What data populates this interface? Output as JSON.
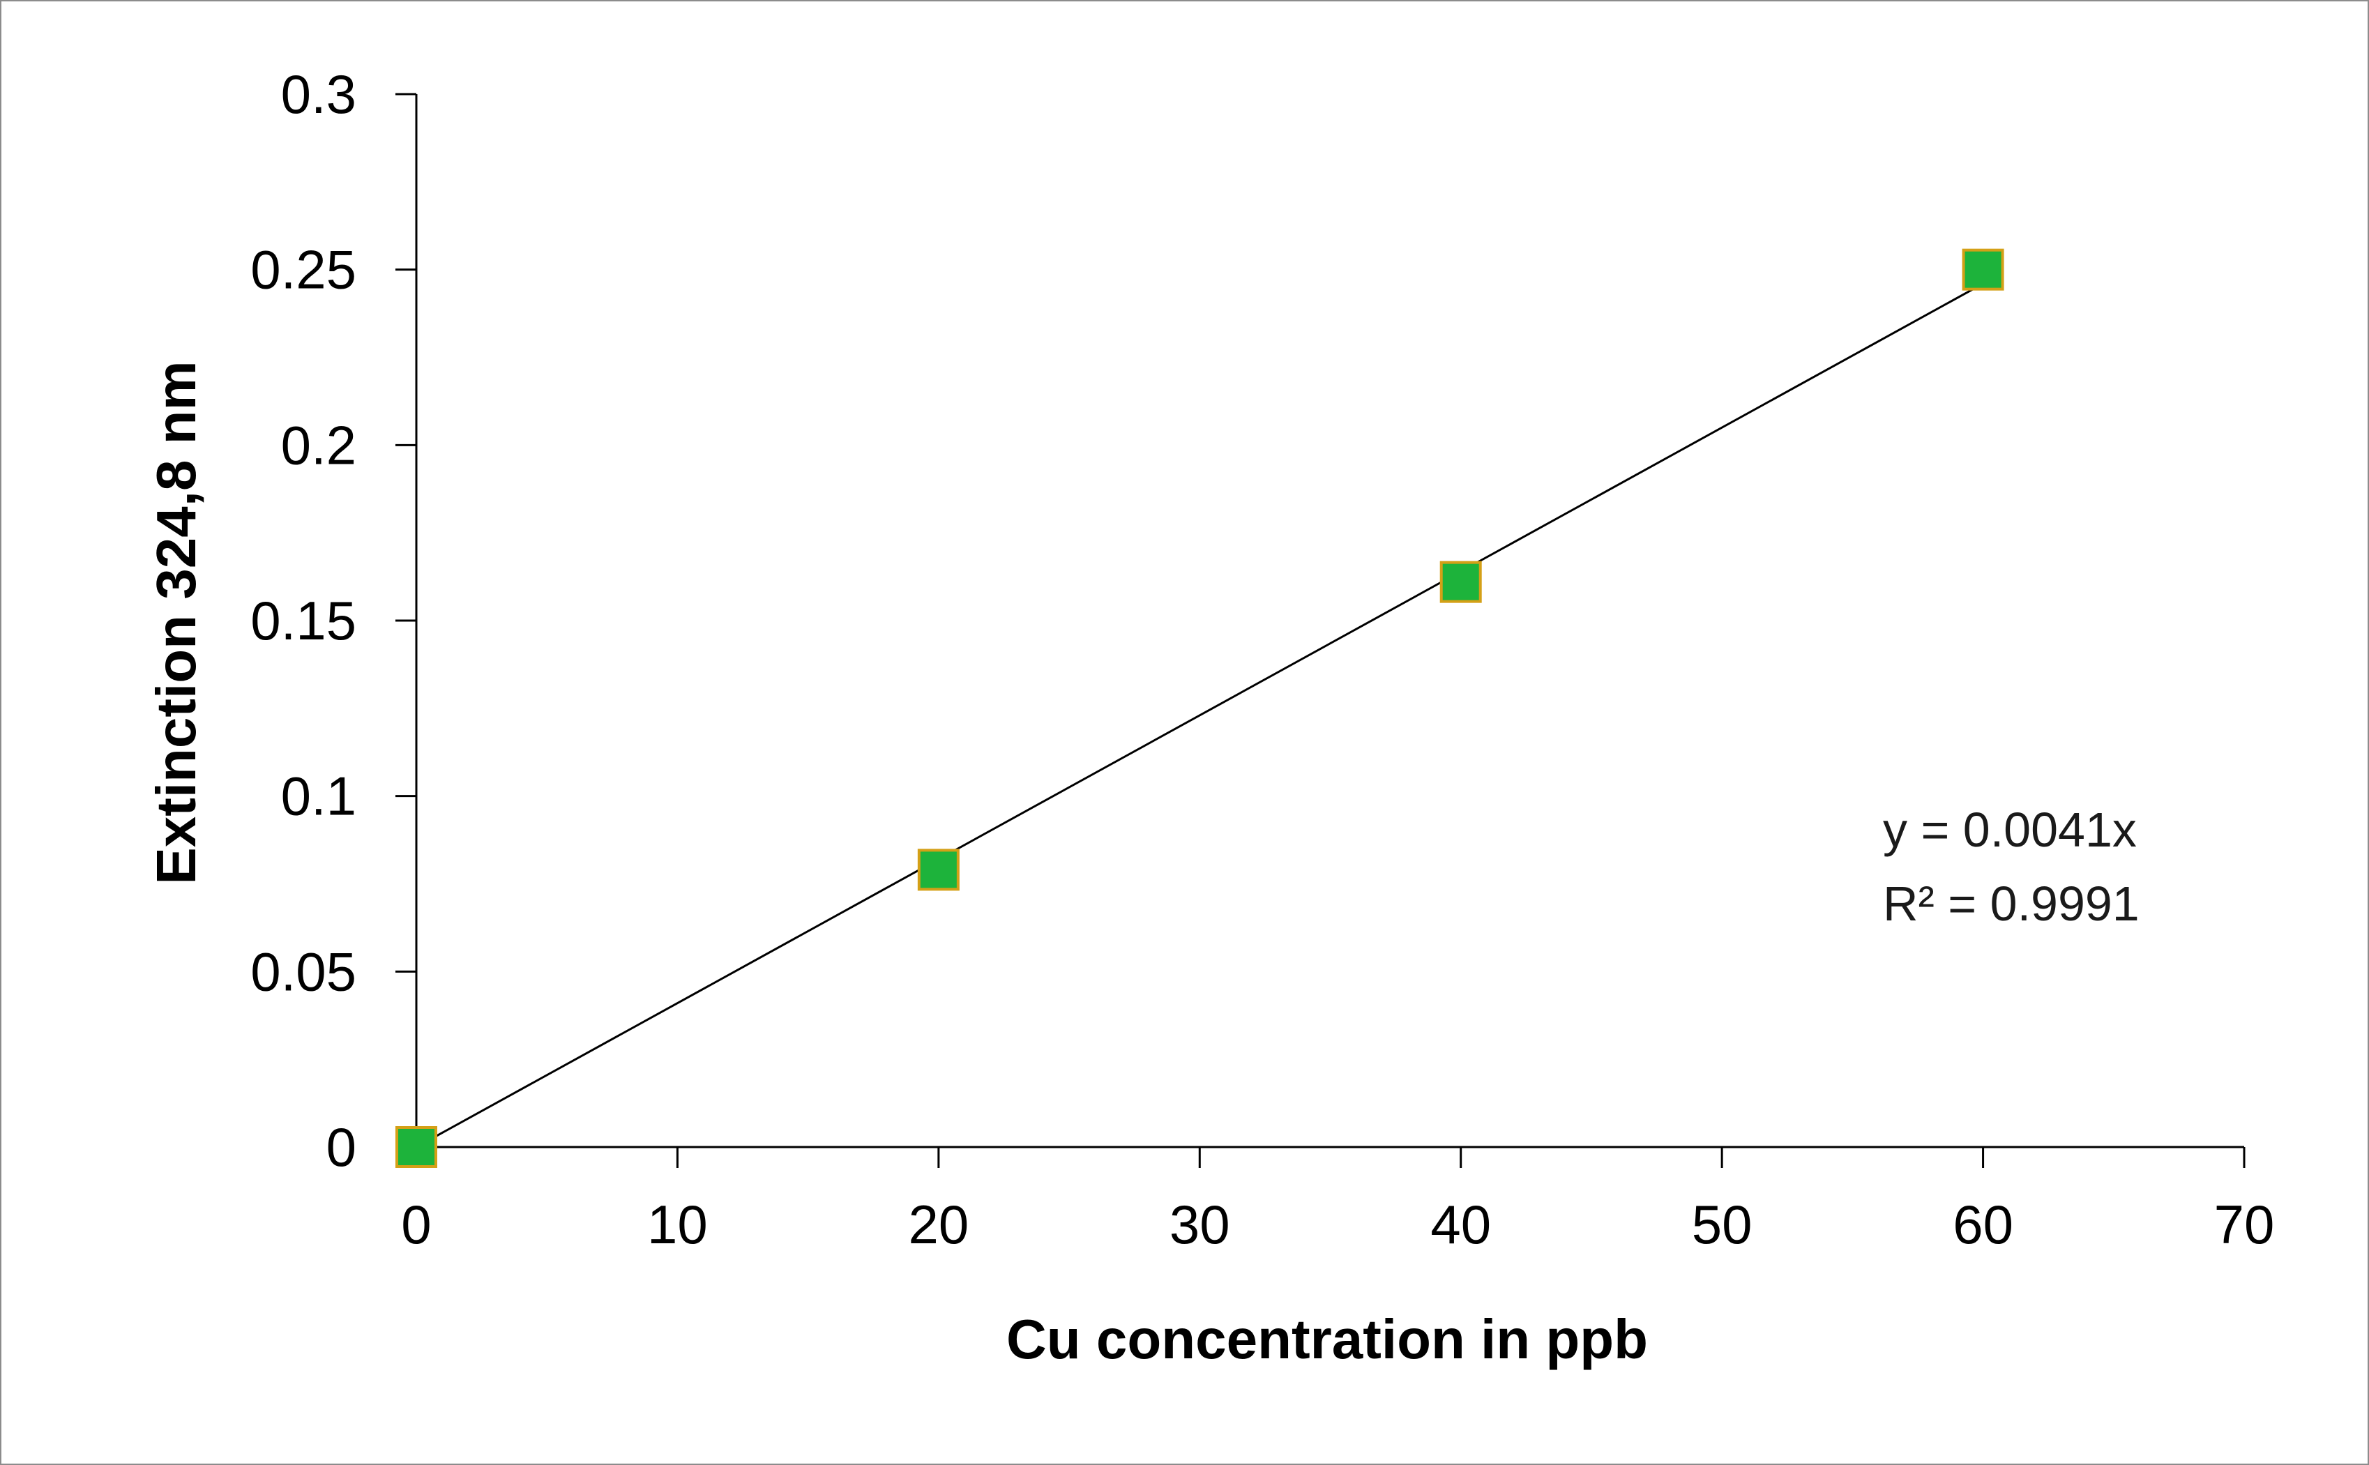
{
  "chart_data": {
    "type": "scatter",
    "title": "",
    "xlabel": "Cu concentration in ppb",
    "ylabel": "Extinction 324,8 nm",
    "xlim": [
      0,
      70
    ],
    "ylim": [
      0,
      0.3
    ],
    "x_ticks": [
      "0",
      "10",
      "20",
      "30",
      "40",
      "50",
      "60",
      "70"
    ],
    "y_ticks": [
      "0",
      "0.05",
      "0.1",
      "0.15",
      "0.2",
      "0.25",
      "0.3"
    ],
    "grid": false,
    "legend": "none",
    "series": [
      {
        "x": [
          0,
          20,
          40,
          60
        ],
        "y": [
          0,
          0.079,
          0.161,
          0.25
        ],
        "marker": "square",
        "color": "#1db33b",
        "edge_color": "#d4a017"
      }
    ],
    "trendline": {
      "type": "linear",
      "slope": 0.0041,
      "intercept": 0,
      "x_range": [
        0,
        60
      ],
      "color": "#000000"
    },
    "annotations": {
      "equation": "y = 0.0041x",
      "r_squared": "R² = 0.9991"
    }
  }
}
